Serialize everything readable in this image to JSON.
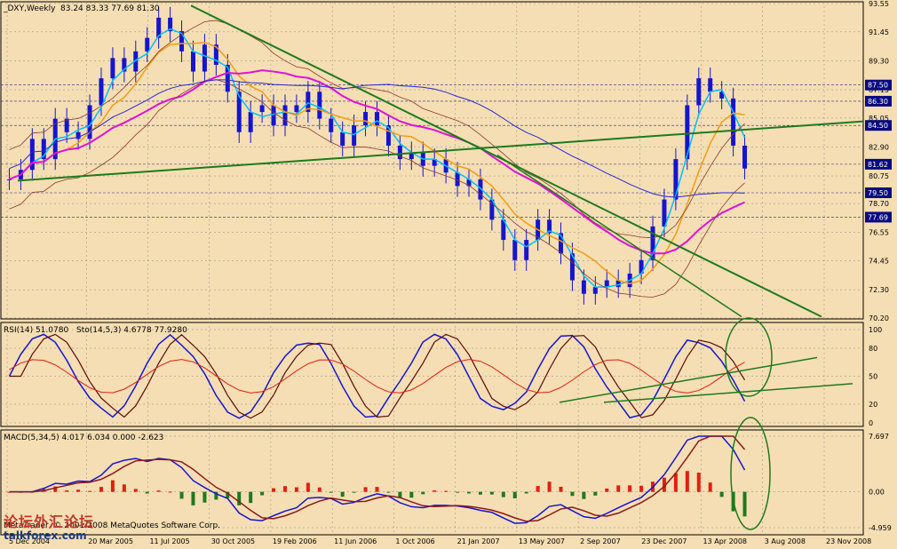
{
  "panels": {
    "price": {
      "title": "_DXY,Weekly",
      "ohlc": "83.24 83.33 77.69 81.30"
    },
    "osc": {
      "rsi_label": "RSI(14) 51.0780",
      "stoch_label": "Sto(14,5,3) 4.6778 77.9280"
    },
    "macd": {
      "label": "MACD(5,34,5) 4.017 6.034 0.000 -2.623",
      "copyright": "MetaTrader, © 2001-2008 MetaQuotes Software Corp."
    }
  },
  "watermark": {
    "line1": "论坛外汇论坛",
    "line2": "talkforex.com"
  },
  "chart_data": [
    {
      "type": "line",
      "panel": "price",
      "title": "_DXY,Weekly",
      "series": [
        {
          "values": [
            80.5,
            81.2,
            83.5,
            82.0,
            85.0,
            84.0,
            83.5,
            86.0,
            88.0,
            89.5,
            88.5,
            90.0,
            91.0,
            92.5,
            91.5,
            90.0,
            88.5,
            90.5,
            89.0,
            87.0,
            84.0,
            85.5,
            86.0,
            84.5,
            86.0,
            85.5,
            87.0,
            85.0,
            84.0,
            83.0,
            84.5,
            85.5,
            84.5,
            83.0,
            82.0,
            82.5,
            81.5,
            82.0,
            81.0,
            80.0,
            80.5,
            79.0,
            77.5,
            76.0,
            74.5,
            76.0,
            77.5,
            76.5,
            75.0,
            73.0,
            72.0,
            72.5,
            73.0,
            72.5,
            73.5,
            74.5,
            77.0,
            79.0,
            82.0,
            86.0,
            88.0,
            87.0,
            86.5,
            83.0,
            81.3
          ]
        }
      ],
      "y_ticks": [
        "93.55",
        "91.45",
        "89.30",
        "87.15",
        "85.05",
        "82.90",
        "80.75",
        "78.70",
        "76.55",
        "74.45",
        "72.30",
        "70.20"
      ],
      "price_badges": [
        "87.50",
        "86.30",
        "84.50",
        "81.62",
        "79.50",
        "77.69"
      ],
      "ylim": [
        70.2,
        93.55
      ]
    },
    {
      "type": "line",
      "panel": "osc",
      "y_ticks": [
        "100",
        "80",
        "50",
        "20",
        "0"
      ],
      "ylim": [
        0,
        100
      ]
    },
    {
      "type": "bar",
      "panel": "macd",
      "y_ticks": [
        "7.697",
        "0.00",
        "-4.959"
      ],
      "ylim": [
        -4.959,
        7.697
      ]
    }
  ],
  "x_axis": {
    "labels": [
      "5 Dec 2004",
      "20 Mar 2005",
      "11 Jul 2005",
      "30 Oct 2005",
      "19 Feb 2006",
      "11 Jun 2006",
      "1 Oct 2006",
      "21 Jan 2007",
      "13 May 2007",
      "2 Sep 2007",
      "23 Dec 2007",
      "13 Apr 2008",
      "3 Aug 2008",
      "23 Nov 2008"
    ]
  },
  "colors": {
    "bg": "#f5deb3",
    "candle": "#1515d0",
    "ma_fast": "#00bfff",
    "ma_orange": "#f39c12",
    "ma_magenta": "#e011d8",
    "trend": "#1d7a1d",
    "hist_pos": "#e02010",
    "hist_neg": "#1d7a1d",
    "badge": "#0a0a80"
  }
}
